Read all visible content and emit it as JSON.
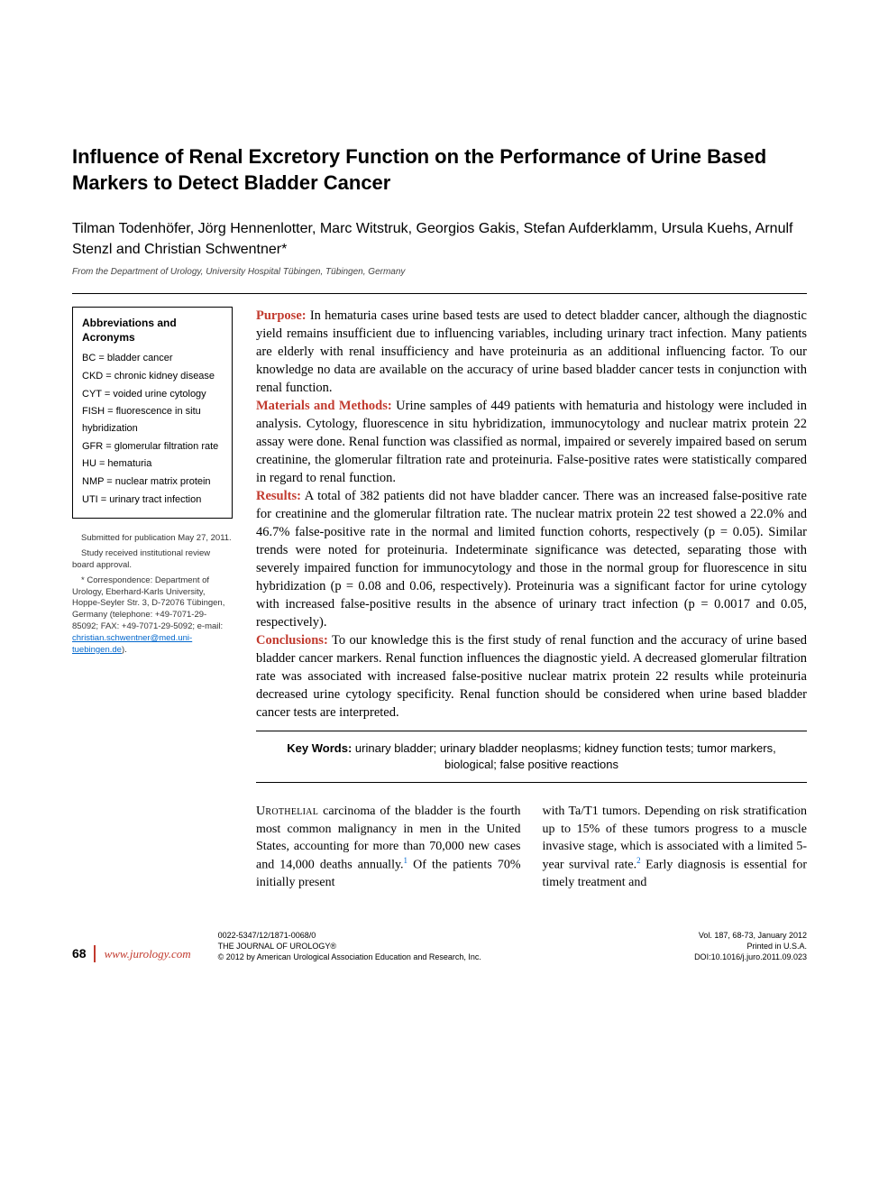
{
  "title": "Influence of Renal Excretory Function on the Performance of Urine Based Markers to Detect Bladder Cancer",
  "authors": "Tilman Todenhöfer, Jörg Hennenlotter, Marc Witstruk, Georgios Gakis, Stefan Aufderklamm, Ursula Kuehs, Arnulf Stenzl and Christian Schwentner*",
  "affiliation": "From the Department of Urology, University Hospital Tübingen, Tübingen, Germany",
  "abbreviations": {
    "heading": "Abbreviations and Acronyms",
    "items": [
      "BC = bladder cancer",
      "CKD = chronic kidney disease",
      "CYT = voided urine cytology",
      "FISH = fluorescence in situ hybridization",
      "GFR = glomerular filtration rate",
      "HU = hematuria",
      "NMP = nuclear matrix protein",
      "UTI = urinary tract infection"
    ]
  },
  "notes": {
    "submitted": "Submitted for publication May 27, 2011.",
    "irb": "Study received institutional review board approval.",
    "correspondence": "* Correspondence: Department of Urology, Eberhard-Karls University, Hoppe-Seyler Str. 3, D-72076 Tübingen, Germany (telephone: +49-7071-29-85092; FAX: +49-7071-29-5092; e-mail: ",
    "email": "christian.schwentner@med.uni-tuebingen.de",
    "email_close": ")."
  },
  "abstract": {
    "purpose_label": "Purpose:",
    "purpose": " In hematuria cases urine based tests are used to detect bladder cancer, although the diagnostic yield remains insufficient due to influencing variables, including urinary tract infection. Many patients are elderly with renal insufficiency and have proteinuria as an additional influencing factor. To our knowledge no data are available on the accuracy of urine based bladder cancer tests in conjunction with renal function.",
    "methods_label": "Materials and Methods:",
    "methods": " Urine samples of 449 patients with hematuria and histology were included in analysis. Cytology, fluorescence in situ hybridization, immunocytology and nuclear matrix protein 22 assay were done. Renal function was classified as normal, impaired or severely impaired based on serum creatinine, the glomerular filtration rate and proteinuria. False-positive rates were statistically compared in regard to renal function.",
    "results_label": "Results:",
    "results": " A total of 382 patients did not have bladder cancer. There was an increased false-positive rate for creatinine and the glomerular filtration rate. The nuclear matrix protein 22 test showed a 22.0% and 46.7% false-positive rate in the normal and limited function cohorts, respectively (p = 0.05). Similar trends were noted for proteinuria. Indeterminate significance was detected, separating those with severely impaired function for immunocytology and those in the normal group for fluorescence in situ hybridization (p = 0.08 and 0.06, respectively). Proteinuria was a significant factor for urine cytology with increased false-positive results in the absence of urinary tract infection (p = 0.0017 and 0.05, respectively).",
    "conclusions_label": "Conclusions:",
    "conclusions": " To our knowledge this is the first study of renal function and the accuracy of urine based bladder cancer markers. Renal function influences the diagnostic yield. A decreased glomerular filtration rate was associated with increased false-positive nuclear matrix protein 22 results while proteinuria decreased urine cytology specificity. Renal function should be considered when urine based bladder cancer tests are interpreted."
  },
  "keywords": {
    "label": "Key Words:",
    "text": " urinary bladder; urinary bladder neoplasms; kidney function tests; tumor markers, biological; false positive reactions"
  },
  "body": {
    "col1_lead": "Urothelial",
    "col1_rest": " carcinoma of the bladder is the fourth most common malignancy in men in the United States, accounting for more than 70,000 new cases and 14,000 deaths annually.",
    "col1_sup": "1",
    "col1_after": " Of the patients 70% initially present",
    "col2_a": "with Ta/T1 tumors. Depending on risk stratification up to 15% of these tumors progress to a muscle invasive stage, which is associated with a limited 5-year survival rate.",
    "col2_sup": "2",
    "col2_b": " Early diagnosis is essential for timely treatment and"
  },
  "footer": {
    "page": "68",
    "url": "www.jurology.com",
    "issn": "0022-5347/12/1871-0068/0",
    "journal": "THE JOURNAL OF UROLOGY®",
    "copyright": "© 2012 by American Urological Association Education and Research, Inc.",
    "vol": "Vol. 187, 68-73, January 2012",
    "printed": "Printed in U.S.A.",
    "doi": "DOI:10.1016/j.juro.2011.09.023"
  },
  "colors": {
    "accent": "#c23a2e",
    "link": "#0066cc"
  }
}
